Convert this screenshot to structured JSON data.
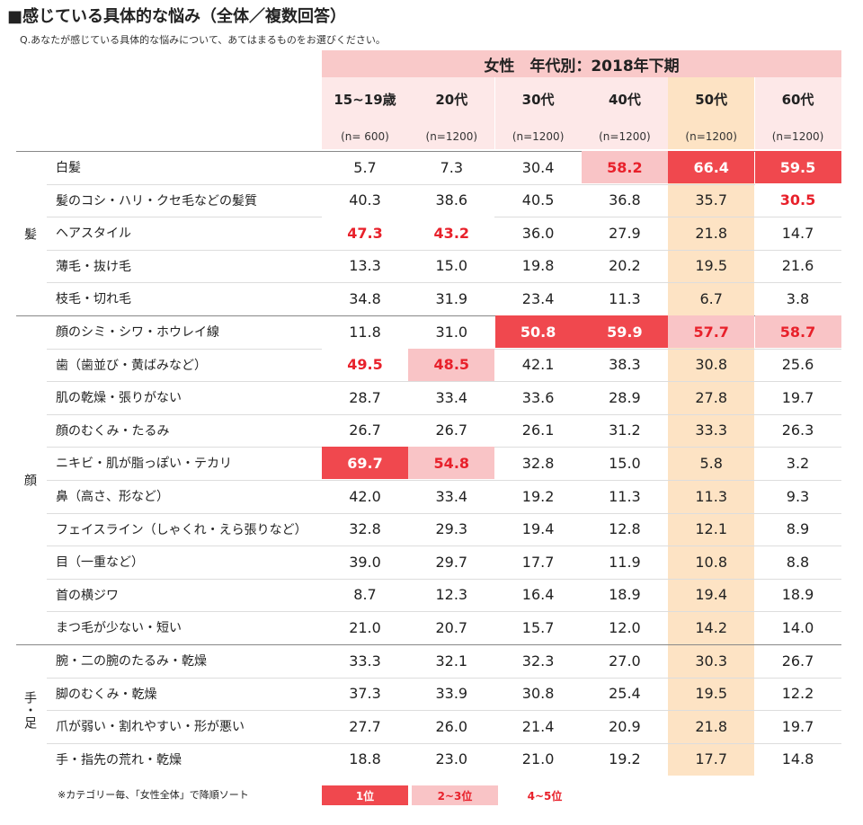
{
  "header": {
    "title": "■感じている具体的な悩み（全体／複数回答）",
    "question": "Q.あなたが感じている具体的な悩みについて、あてはまるものをお選びください。"
  },
  "table": {
    "band": "女性　年代別：2018年下期",
    "columns": [
      {
        "label": "15~19歳",
        "n": "(n=  600)"
      },
      {
        "label": "20代",
        "n": "(n=1200)"
      },
      {
        "label": "30代",
        "n": "(n=1200)"
      },
      {
        "label": "40代",
        "n": "(n=1200)"
      },
      {
        "label": "50代",
        "n": "(n=1200)",
        "emphasis": true
      },
      {
        "label": "60代",
        "n": "(n=1200)"
      }
    ],
    "groups": [
      {
        "label": "髪",
        "rows": [
          {
            "label": "白髪",
            "values": [
              "5.7",
              "7.3",
              "30.4",
              "58.2",
              "66.4",
              "59.5"
            ],
            "highlight": [
              null,
              null,
              null,
              "2~3位",
              "1位",
              "1位"
            ]
          },
          {
            "label": "髪のコシ・ハリ・クセ毛などの髪質",
            "values": [
              "40.3",
              "38.6",
              "40.5",
              "36.8",
              "35.7",
              "30.5"
            ],
            "highlight": [
              null,
              null,
              null,
              null,
              null,
              "4~5位"
            ]
          },
          {
            "label": "ヘアスタイル",
            "values": [
              "47.3",
              "43.2",
              "36.0",
              "27.9",
              "21.8",
              "14.7"
            ],
            "highlight": [
              "4~5位",
              "4~5位",
              null,
              null,
              null,
              null
            ]
          },
          {
            "label": "薄毛・抜け毛",
            "values": [
              "13.3",
              "15.0",
              "19.8",
              "20.2",
              "19.5",
              "21.6"
            ],
            "highlight": [
              null,
              null,
              null,
              null,
              null,
              null
            ]
          },
          {
            "label": "枝毛・切れ毛",
            "values": [
              "34.8",
              "31.9",
              "23.4",
              "11.3",
              "6.7",
              "3.8"
            ],
            "highlight": [
              null,
              null,
              null,
              null,
              null,
              null
            ]
          }
        ]
      },
      {
        "label": "顔",
        "rows": [
          {
            "label": "顔のシミ・シワ・ホウレイ線",
            "values": [
              "11.8",
              "31.0",
              "50.8",
              "59.9",
              "57.7",
              "58.7"
            ],
            "highlight": [
              null,
              null,
              "1位",
              "1位",
              "2~3位",
              "2~3位"
            ]
          },
          {
            "label": "歯（歯並び・黄ばみなど）",
            "values": [
              "49.5",
              "48.5",
              "42.1",
              "38.3",
              "30.8",
              "25.6"
            ],
            "highlight": [
              "4~5位",
              "2~3位",
              null,
              null,
              null,
              null
            ]
          },
          {
            "label": "肌の乾燥・張りがない",
            "values": [
              "28.7",
              "33.4",
              "33.6",
              "28.9",
              "27.8",
              "19.7"
            ],
            "highlight": [
              null,
              null,
              null,
              null,
              null,
              null
            ]
          },
          {
            "label": "顔のむくみ・たるみ",
            "values": [
              "26.7",
              "26.7",
              "26.1",
              "31.2",
              "33.3",
              "26.3"
            ],
            "highlight": [
              null,
              null,
              null,
              null,
              null,
              null
            ]
          },
          {
            "label": "ニキビ・肌が脂っぽい・テカリ",
            "values": [
              "69.7",
              "54.8",
              "32.8",
              "15.0",
              "5.8",
              "3.2"
            ],
            "highlight": [
              "1位",
              "2~3位",
              null,
              null,
              null,
              null
            ]
          },
          {
            "label": "鼻（高さ、形など）",
            "values": [
              "42.0",
              "33.4",
              "19.2",
              "11.3",
              "11.3",
              "9.3"
            ],
            "highlight": [
              null,
              null,
              null,
              null,
              null,
              null
            ]
          },
          {
            "label": "フェイスライン（しゃくれ・えら張りなど）",
            "values": [
              "32.8",
              "29.3",
              "19.4",
              "12.8",
              "12.1",
              "8.9"
            ],
            "highlight": [
              null,
              null,
              null,
              null,
              null,
              null
            ]
          },
          {
            "label": "目（一重など）",
            "values": [
              "39.0",
              "29.7",
              "17.7",
              "11.9",
              "10.8",
              "8.8"
            ],
            "highlight": [
              null,
              null,
              null,
              null,
              null,
              null
            ]
          },
          {
            "label": "首の横ジワ",
            "values": [
              "8.7",
              "12.3",
              "16.4",
              "18.9",
              "19.4",
              "18.9"
            ],
            "highlight": [
              null,
              null,
              null,
              null,
              null,
              null
            ]
          },
          {
            "label": "まつ毛が少ない・短い",
            "values": [
              "21.0",
              "20.7",
              "15.7",
              "12.0",
              "14.2",
              "14.0"
            ],
            "highlight": [
              null,
              null,
              null,
              null,
              null,
              null
            ]
          }
        ]
      },
      {
        "label": "手・足",
        "rows": [
          {
            "label": "腕・二の腕のたるみ・乾燥",
            "values": [
              "33.3",
              "32.1",
              "32.3",
              "27.0",
              "30.3",
              "26.7"
            ],
            "highlight": [
              null,
              null,
              null,
              null,
              null,
              null
            ]
          },
          {
            "label": "脚のむくみ・乾燥",
            "values": [
              "37.3",
              "33.9",
              "30.8",
              "25.4",
              "19.5",
              "12.2"
            ],
            "highlight": [
              null,
              null,
              null,
              null,
              null,
              null
            ]
          },
          {
            "label": "爪が弱い・割れやすい・形が悪い",
            "values": [
              "27.7",
              "26.0",
              "21.4",
              "20.9",
              "21.8",
              "19.7"
            ],
            "highlight": [
              null,
              null,
              null,
              null,
              null,
              null
            ]
          },
          {
            "label": "手・指先の荒れ・乾燥",
            "values": [
              "18.8",
              "23.0",
              "21.0",
              "19.2",
              "17.7",
              "14.8"
            ],
            "highlight": [
              null,
              null,
              null,
              null,
              null,
              null
            ]
          }
        ]
      }
    ]
  },
  "footer": {
    "note": "※カテゴリー毎、「女性全体」で降順ソート",
    "legend": [
      {
        "label": "1位",
        "background": "#f0484e",
        "color": "#ffffff"
      },
      {
        "label": "2~3位",
        "background": "#f9c4c6",
        "color": "#e8212b"
      },
      {
        "label": "4~5位",
        "background": "#ffffff",
        "color": "#e8212b"
      }
    ]
  }
}
